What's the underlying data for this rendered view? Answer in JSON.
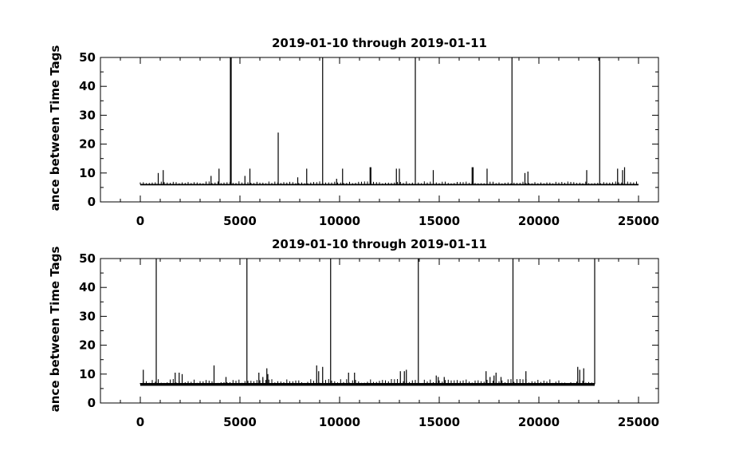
{
  "chart_data": [
    {
      "type": "line",
      "title": "2019-01-10 through 2019-01-11",
      "xlabel": "",
      "ylabel": "ance between Time Tags",
      "xlim": [
        -2000,
        26000
      ],
      "ylim": [
        0,
        50
      ],
      "xticks": [
        0,
        5000,
        10000,
        15000,
        20000,
        25000
      ],
      "yticks": [
        0,
        10,
        20,
        30,
        40,
        50
      ],
      "grid": false,
      "color": "#000000",
      "baseline": 6,
      "x_range": [
        0,
        25000
      ],
      "series": [
        {
          "spikes": [
            [
              900,
              10
            ],
            [
              1150,
              11
            ],
            [
              3550,
              9
            ],
            [
              3950,
              11.5
            ],
            [
              4520,
              50
            ],
            [
              4560,
              50
            ],
            [
              5250,
              9
            ],
            [
              5500,
              11.5
            ],
            [
              6920,
              24
            ],
            [
              7900,
              8.5
            ],
            [
              8350,
              11.5
            ],
            [
              9150,
              50
            ],
            [
              9850,
              8
            ],
            [
              10150,
              11.5
            ],
            [
              11530,
              12
            ],
            [
              11570,
              12
            ],
            [
              12850,
              11.5
            ],
            [
              13000,
              11.5
            ],
            [
              13800,
              50
            ],
            [
              14700,
              11
            ],
            [
              16650,
              12
            ],
            [
              16700,
              12
            ],
            [
              17400,
              11.5
            ],
            [
              18650,
              50
            ],
            [
              19300,
              10
            ],
            [
              19450,
              10.5
            ],
            [
              22400,
              11
            ],
            [
              23050,
              50
            ],
            [
              23950,
              11.5
            ],
            [
              24200,
              11
            ],
            [
              24300,
              12
            ]
          ]
        }
      ]
    },
    {
      "type": "line",
      "title": "2019-01-10 through 2019-01-11",
      "xlabel": "",
      "ylabel": "ance between Time Tags",
      "xlim": [
        -2000,
        26000
      ],
      "ylim": [
        0,
        50
      ],
      "xticks": [
        0,
        5000,
        10000,
        15000,
        20000,
        25000
      ],
      "yticks": [
        0,
        10,
        20,
        30,
        40,
        50
      ],
      "grid": false,
      "color": "#000000",
      "baseline": 6.5,
      "x_range": [
        0,
        22800
      ],
      "series": [
        {
          "spikes": [
            [
              150,
              11.5
            ],
            [
              800,
              50
            ],
            [
              1750,
              10.5
            ],
            [
              1950,
              10.5
            ],
            [
              2100,
              10
            ],
            [
              3700,
              13
            ],
            [
              4300,
              9
            ],
            [
              5350,
              50
            ],
            [
              5950,
              10.5
            ],
            [
              6150,
              9
            ],
            [
              6350,
              12
            ],
            [
              6400,
              10
            ],
            [
              8850,
              13
            ],
            [
              8950,
              11
            ],
            [
              9150,
              12.5
            ],
            [
              9550,
              50
            ],
            [
              10450,
              10.5
            ],
            [
              10750,
              10.5
            ],
            [
              13050,
              11
            ],
            [
              13250,
              11
            ],
            [
              13350,
              11.5
            ],
            [
              13950,
              50
            ],
            [
              14850,
              9.5
            ],
            [
              14950,
              9
            ],
            [
              15250,
              9
            ],
            [
              17350,
              11
            ],
            [
              17550,
              9
            ],
            [
              17750,
              9.5
            ],
            [
              17850,
              10.5
            ],
            [
              18100,
              9
            ],
            [
              18700,
              50
            ],
            [
              19350,
              11
            ],
            [
              21950,
              12.5
            ],
            [
              22050,
              11.5
            ],
            [
              22250,
              12
            ],
            [
              22800,
              50
            ]
          ]
        }
      ]
    }
  ]
}
